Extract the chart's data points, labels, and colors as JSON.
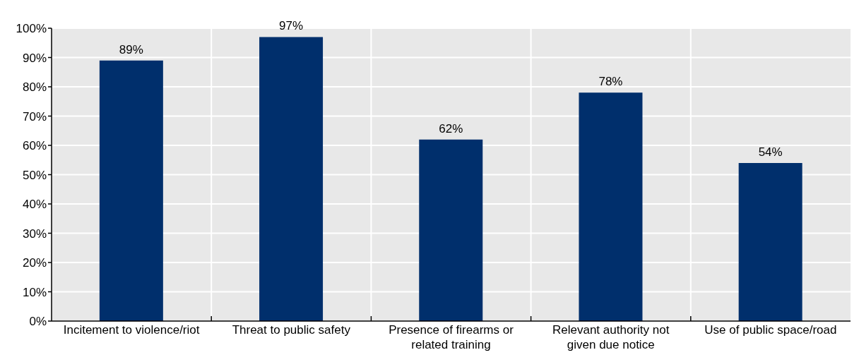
{
  "chart_data": {
    "type": "bar",
    "categories": [
      "Incitement to violence/riot",
      "Threat to public safety",
      "Presence of firearms or related training",
      "Relevant authority not given due notice",
      "Use of public space/road"
    ],
    "values": [
      89,
      97,
      62,
      78,
      54
    ],
    "value_labels": [
      "89%",
      "97%",
      "62%",
      "78%",
      "54%"
    ],
    "color": "#002f6c",
    "ylim": [
      0,
      100
    ],
    "yticks": [
      {
        "value": 0,
        "label": "0%"
      },
      {
        "value": 10,
        "label": "10%"
      },
      {
        "value": 20,
        "label": "20%"
      },
      {
        "value": 30,
        "label": "30%"
      },
      {
        "value": 40,
        "label": "40%"
      },
      {
        "value": 50,
        "label": "50%"
      },
      {
        "value": 60,
        "label": "60%"
      },
      {
        "value": 70,
        "label": "70%"
      },
      {
        "value": 80,
        "label": "80%"
      },
      {
        "value": 90,
        "label": "90%"
      },
      {
        "value": 100,
        "label": "100%"
      }
    ],
    "grid": true
  }
}
